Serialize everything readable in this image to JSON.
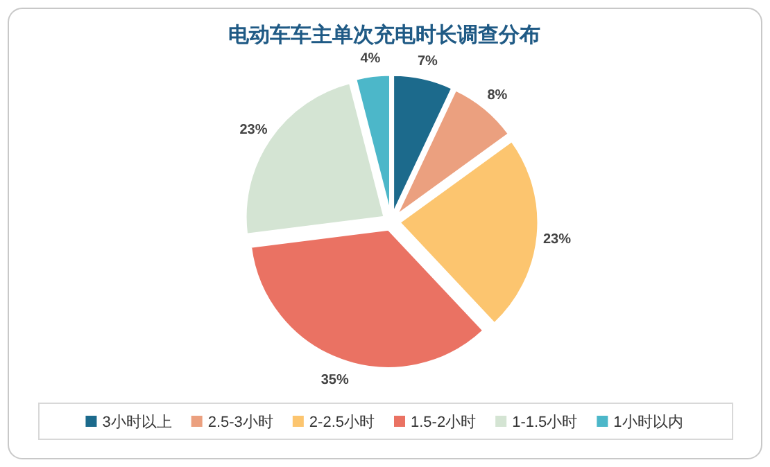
{
  "chart_data": {
    "type": "pie",
    "title": "电动车车主单次充电时长调查分布",
    "categories": [
      "3小时以上",
      "2.5-3小时",
      "2-2.5小时",
      "1.5-2小时",
      "1-1.5小时",
      "1小时以内"
    ],
    "values": [
      7,
      8,
      23,
      35,
      23,
      4
    ],
    "colors": [
      "#1c6a8c",
      "#eba07f",
      "#fcc56f",
      "#ea7263",
      "#d4e4d3",
      "#4cb7c9"
    ],
    "value_labels": [
      "7%",
      "8%",
      "23%",
      "35%",
      "23%",
      "4%"
    ],
    "legend": "bottom"
  }
}
